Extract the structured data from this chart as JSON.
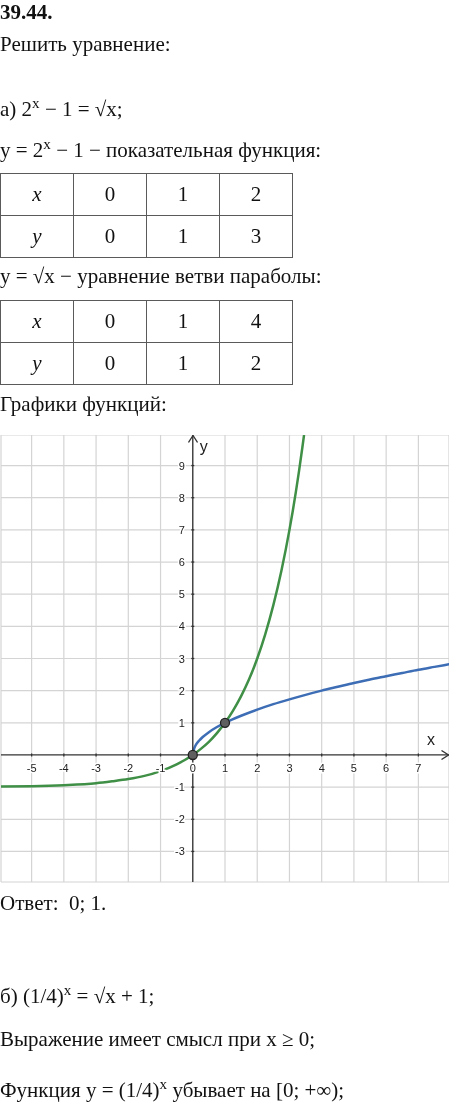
{
  "chart_data": [
    {
      "type": "other",
      "title": "39.44.",
      "annotations": [
        "Решить уравнение:",
        "а) 2$^{x}$ − 1 = √x;"
      ]
    },
    {
      "type": "other",
      "title": "y = 2$^{x}$ − 1 − показательная функция:",
      "xlabel": "x",
      "ylabel": "y",
      "categories": [
        "0",
        "1",
        "2"
      ],
      "values": [
        0,
        1,
        3
      ],
      "data_labels": true
    },
    {
      "type": "other",
      "title": "y = √x − уравнение ветви параболы:",
      "xlabel": "x",
      "ylabel": "y",
      "categories": [
        "0",
        "1",
        "4"
      ],
      "values": [
        0,
        1,
        2
      ],
      "data_labels": true
    },
    {
      "type": "line",
      "title": "Графики функций:",
      "xlabel": "x",
      "ylabel": "y",
      "xlim": [
        -5.95,
        7.95
      ],
      "ylim": [
        -3.95,
        9.95
      ],
      "xticks": [
        -5,
        -4,
        -3,
        -2,
        -1,
        0,
        1,
        2,
        3,
        4,
        5,
        6,
        7
      ],
      "yticks": [
        -3,
        -2,
        -1,
        1,
        2,
        3,
        4,
        5,
        6,
        7,
        8,
        9
      ],
      "grid": true,
      "series": [
        {
          "type": "line",
          "color": "#3f8f46",
          "x": [
            -5.95,
            -5,
            -4,
            -3,
            -2.5,
            -2,
            -1.5,
            -1,
            -0.5,
            0,
            0.25,
            0.5,
            0.75,
            1,
            1.25,
            1.5,
            1.75,
            2,
            2.25,
            2.5,
            2.75,
            3,
            3.1,
            3.2,
            3.3,
            3.4,
            3.45
          ],
          "values": [
            -0.98,
            -0.97,
            -0.94,
            -0.88,
            -0.82,
            -0.75,
            -0.65,
            -0.5,
            -0.29,
            0,
            0.19,
            0.41,
            0.68,
            1,
            1.38,
            1.83,
            2.36,
            3,
            3.76,
            4.66,
            5.73,
            7,
            7.57,
            8.19,
            8.85,
            9.56,
            9.93
          ]
        },
        {
          "type": "line",
          "color": "#3d6db5",
          "x": [
            0,
            0.05,
            0.1,
            0.2,
            0.3,
            0.5,
            0.75,
            1,
            1.5,
            2,
            2.5,
            3,
            3.5,
            4,
            4.5,
            5,
            5.5,
            6,
            6.5,
            7,
            7.5,
            7.95
          ],
          "values": [
            0,
            0.22,
            0.32,
            0.45,
            0.55,
            0.71,
            0.87,
            1,
            1.22,
            1.41,
            1.58,
            1.73,
            1.87,
            2,
            2.12,
            2.24,
            2.35,
            2.45,
            2.55,
            2.65,
            2.74,
            2.82
          ]
        },
        {
          "type": "scatter",
          "color": "#5f5f5f",
          "x": [
            0,
            1
          ],
          "values": [
            0,
            1
          ]
        }
      ],
      "annotations": [
        "Ответ:  0; 1."
      ]
    },
    {
      "type": "other",
      "annotations": [
        "б) (1/4)$^{x}$ = √x + 1;",
        "Выражение имеет смысл при x ≥ 0;",
        "Функция y = (1/4)$^{x}$ убывает на [0; +∞);"
      ]
    }
  ]
}
